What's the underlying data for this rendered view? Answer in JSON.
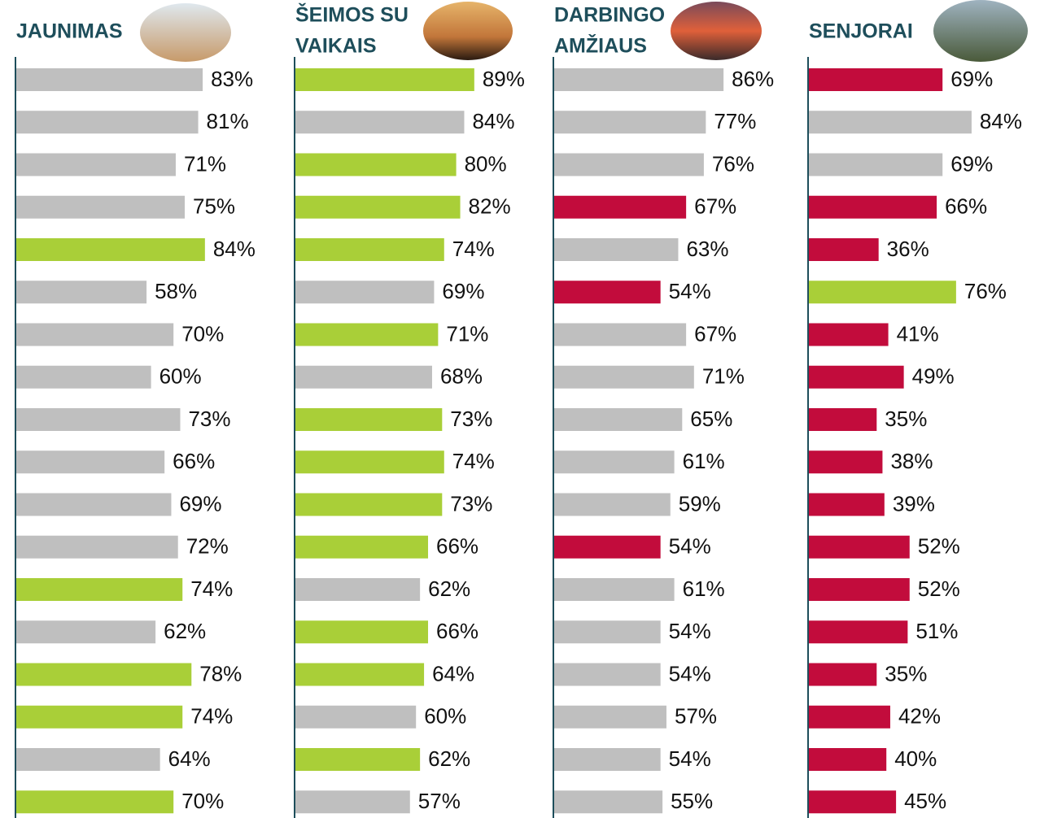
{
  "chart_data": [
    {
      "type": "bar",
      "orientation": "horizontal",
      "title": [
        "JAUNIMAS"
      ],
      "values": [
        83,
        81,
        71,
        75,
        84,
        58,
        70,
        60,
        73,
        66,
        69,
        72,
        74,
        62,
        78,
        74,
        64,
        70
      ],
      "value_labels": [
        "83%",
        "81%",
        "71%",
        "75%",
        "84%",
        "58%",
        "70%",
        "60%",
        "73%",
        "66%",
        "69%",
        "72%",
        "74%",
        "62%",
        "78%",
        "74%",
        "64%",
        "70%"
      ],
      "colors": [
        "#bfbfbf",
        "#bfbfbf",
        "#bfbfbf",
        "#bfbfbf",
        "#a9cf38",
        "#bfbfbf",
        "#bfbfbf",
        "#bfbfbf",
        "#bfbfbf",
        "#bfbfbf",
        "#bfbfbf",
        "#bfbfbf",
        "#a9cf38",
        "#bfbfbf",
        "#a9cf38",
        "#a9cf38",
        "#bfbfbf",
        "#a9cf38"
      ]
    },
    {
      "type": "bar",
      "orientation": "horizontal",
      "title": [
        "ŠEIMOS SU",
        "VAIKAIS"
      ],
      "values": [
        89,
        84,
        80,
        82,
        74,
        69,
        71,
        68,
        73,
        74,
        73,
        66,
        62,
        66,
        64,
        60,
        62,
        57
      ],
      "value_labels": [
        "89%",
        "84%",
        "80%",
        "82%",
        "74%",
        "69%",
        "71%",
        "68%",
        "73%",
        "74%",
        "73%",
        "66%",
        "62%",
        "66%",
        "64%",
        "60%",
        "62%",
        "57%"
      ],
      "colors": [
        "#a9cf38",
        "#bfbfbf",
        "#a9cf38",
        "#a9cf38",
        "#a9cf38",
        "#bfbfbf",
        "#a9cf38",
        "#bfbfbf",
        "#a9cf38",
        "#a9cf38",
        "#a9cf38",
        "#a9cf38",
        "#bfbfbf",
        "#a9cf38",
        "#a9cf38",
        "#bfbfbf",
        "#a9cf38",
        "#bfbfbf"
      ]
    },
    {
      "type": "bar",
      "orientation": "horizontal",
      "title": [
        "DARBINGO",
        "AMŽIAUS"
      ],
      "values": [
        86,
        77,
        76,
        67,
        63,
        54,
        67,
        71,
        65,
        61,
        59,
        54,
        61,
        54,
        54,
        57,
        54,
        55
      ],
      "value_labels": [
        "86%",
        "77%",
        "76%",
        "67%",
        "63%",
        "54%",
        "67%",
        "71%",
        "65%",
        "61%",
        "59%",
        "54%",
        "61%",
        "54%",
        "54%",
        "57%",
        "54%",
        "55%"
      ],
      "colors": [
        "#bfbfbf",
        "#bfbfbf",
        "#bfbfbf",
        "#c20c3c",
        "#bfbfbf",
        "#c20c3c",
        "#bfbfbf",
        "#bfbfbf",
        "#bfbfbf",
        "#bfbfbf",
        "#bfbfbf",
        "#c20c3c",
        "#bfbfbf",
        "#bfbfbf",
        "#bfbfbf",
        "#bfbfbf",
        "#bfbfbf",
        "#bfbfbf"
      ]
    },
    {
      "type": "bar",
      "orientation": "horizontal",
      "title": [
        "SENJORAI"
      ],
      "values": [
        69,
        84,
        69,
        66,
        36,
        76,
        41,
        49,
        35,
        38,
        39,
        52,
        52,
        51,
        35,
        42,
        40,
        45
      ],
      "value_labels": [
        "69%",
        "84%",
        "69%",
        "66%",
        "36%",
        "76%",
        "41%",
        "49%",
        "35%",
        "38%",
        "39%",
        "52%",
        "52%",
        "51%",
        "35%",
        "42%",
        "40%",
        "45%"
      ],
      "colors": [
        "#c20c3c",
        "#bfbfbf",
        "#bfbfbf",
        "#c20c3c",
        "#c20c3c",
        "#a9cf38",
        "#c20c3c",
        "#c20c3c",
        "#c20c3c",
        "#c20c3c",
        "#c20c3c",
        "#c20c3c",
        "#c20c3c",
        "#c20c3c",
        "#c20c3c",
        "#c20c3c",
        "#c20c3c",
        "#c20c3c"
      ]
    }
  ]
}
